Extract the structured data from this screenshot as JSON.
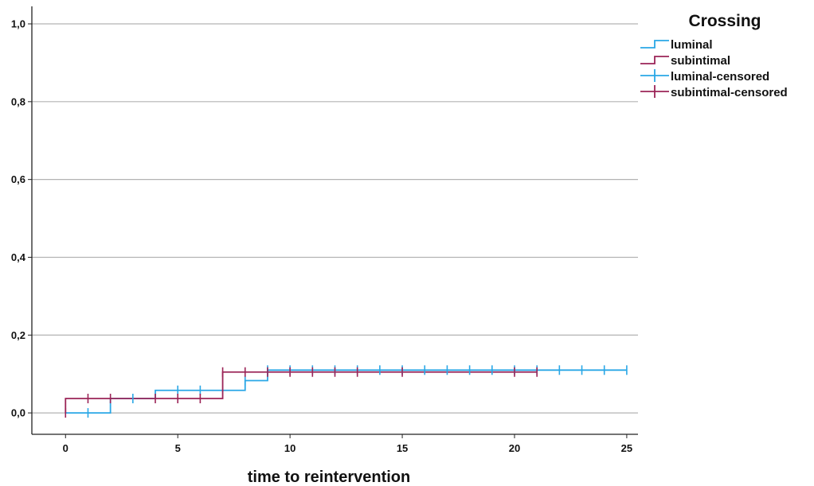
{
  "chart_data": {
    "type": "line",
    "title": "",
    "xlabel": "time to reintervention",
    "ylabel": "",
    "xlim": [
      -1.5,
      25.5
    ],
    "ylim": [
      -0.055,
      1.045
    ],
    "x_ticks": [
      0,
      5,
      10,
      15,
      20,
      25
    ],
    "x_tick_labels": [
      "0",
      "5",
      "10",
      "15",
      "20",
      "25"
    ],
    "y_ticks": [
      0,
      0.2,
      0.4,
      0.6,
      0.8,
      1.0
    ],
    "y_tick_labels": [
      "0,0",
      "0,2",
      "0,4",
      "0,6",
      "0,8",
      "1,0"
    ],
    "grid": "horizontal",
    "legend_title": "Crossing",
    "legend_position": "top-right",
    "series": [
      {
        "name": "luminal",
        "color": "#2aa7e6",
        "step_points": [
          [
            0,
            0
          ],
          [
            2,
            0
          ],
          [
            2,
            0.037
          ],
          [
            4,
            0.037
          ],
          [
            4,
            0.058
          ],
          [
            7,
            0.058
          ],
          [
            7,
            0.058
          ],
          [
            8,
            0.058
          ],
          [
            8,
            0.083
          ],
          [
            9,
            0.083
          ],
          [
            9,
            0.11
          ],
          [
            25,
            0.11
          ]
        ],
        "censored_name": "luminal-censored",
        "censored": [
          [
            1,
            0
          ],
          [
            3,
            0.037
          ],
          [
            5,
            0.058
          ],
          [
            6,
            0.058
          ],
          [
            8,
            0.083
          ],
          [
            9,
            0.11
          ],
          [
            10,
            0.11
          ],
          [
            11,
            0.11
          ],
          [
            12,
            0.11
          ],
          [
            13,
            0.11
          ],
          [
            14,
            0.11
          ],
          [
            15,
            0.11
          ],
          [
            16,
            0.11
          ],
          [
            17,
            0.11
          ],
          [
            18,
            0.11
          ],
          [
            19,
            0.11
          ],
          [
            20,
            0.11
          ],
          [
            21,
            0.11
          ],
          [
            22,
            0.11
          ],
          [
            23,
            0.11
          ],
          [
            24,
            0.11
          ],
          [
            25,
            0.11
          ]
        ]
      },
      {
        "name": "subintimal",
        "color": "#9b2457",
        "step_points": [
          [
            0,
            0
          ],
          [
            0,
            0.037
          ],
          [
            7,
            0.037
          ],
          [
            7,
            0.105
          ],
          [
            21,
            0.105
          ]
        ],
        "censored_name": "subintimal-censored",
        "censored": [
          [
            0,
            0
          ],
          [
            1,
            0.037
          ],
          [
            2,
            0.037
          ],
          [
            4,
            0.037
          ],
          [
            5,
            0.037
          ],
          [
            6,
            0.037
          ],
          [
            7,
            0.105
          ],
          [
            8,
            0.105
          ],
          [
            9,
            0.105
          ],
          [
            10,
            0.105
          ],
          [
            11,
            0.105
          ],
          [
            12,
            0.105
          ],
          [
            13,
            0.105
          ],
          [
            15,
            0.105
          ],
          [
            20,
            0.105
          ],
          [
            21,
            0.105
          ]
        ]
      }
    ]
  }
}
